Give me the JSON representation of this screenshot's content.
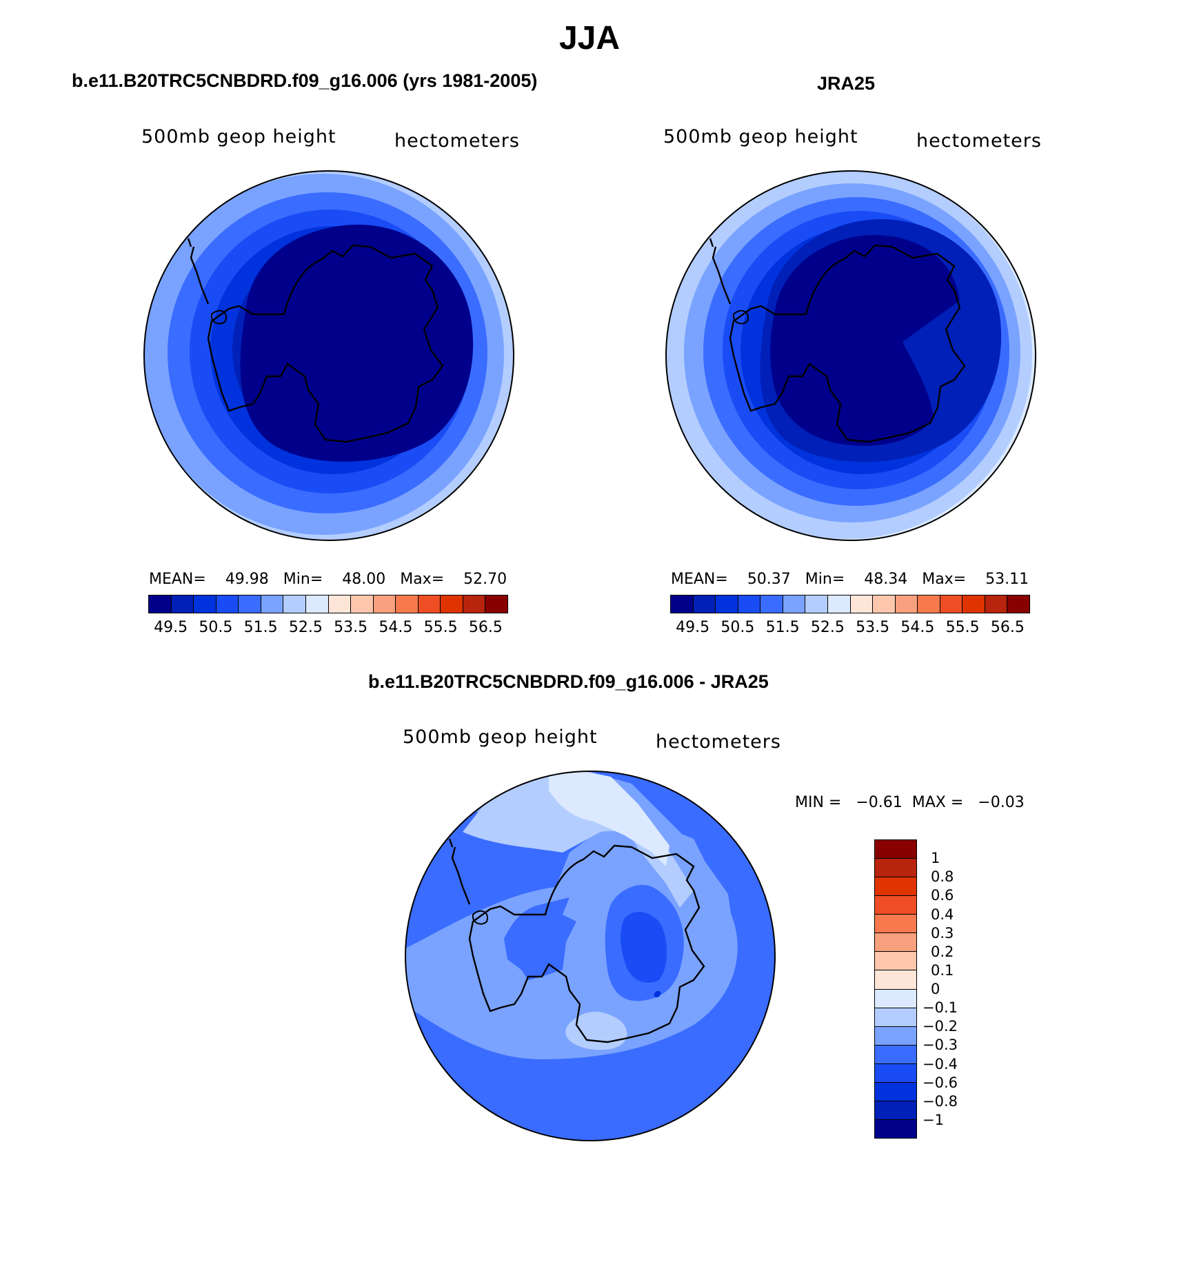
{
  "figure": {
    "title": "JJA"
  },
  "panels": {
    "model": {
      "title": "b.e11.B20TRC5CNBDRD.f09_g16.006 (yrs 1981-2005)",
      "variable": "500mb geop height",
      "units": "hectometers",
      "stats": {
        "mean_label": "MEAN=",
        "mean": "49.98",
        "min_label": "Min=",
        "min": "48.00",
        "max_label": "Max=",
        "max": "52.70"
      }
    },
    "obs": {
      "title": "JRA25",
      "variable": "500mb geop height",
      "units": "hectometers",
      "stats": {
        "mean_label": "MEAN=",
        "mean": "50.37",
        "min_label": "Min=",
        "min": "48.34",
        "max_label": "Max=",
        "max": "53.11"
      }
    },
    "diff": {
      "title": "b.e11.B20TRC5CNBDRD.f09_g16.006 - JRA25",
      "variable": "500mb geop height",
      "units": "hectometers",
      "stats": {
        "min_label": "MIN =",
        "min": "−0.61",
        "max_label": "MAX =",
        "max": "−0.03"
      }
    }
  },
  "colorbars": {
    "abs": {
      "colors": [
        "#00008b",
        "#0020b8",
        "#0033dd",
        "#1a4cf5",
        "#3a6cff",
        "#7aa3ff",
        "#b3cdff",
        "#dce9ff",
        "#fde6d8",
        "#fdc7ad",
        "#f9a07e",
        "#f67a4e",
        "#ef4e24",
        "#df3300",
        "#b8240d",
        "#880000"
      ],
      "ticks": [
        "49.5",
        "50.5",
        "51.5",
        "52.5",
        "53.5",
        "54.5",
        "55.5",
        "56.5"
      ]
    },
    "diff": {
      "colors_top_to_bottom": [
        "#880000",
        "#b8240d",
        "#df3300",
        "#ef4e24",
        "#f67a4e",
        "#f9a07e",
        "#fdc7ad",
        "#fde6d8",
        "#dce9ff",
        "#b3cdff",
        "#7aa3ff",
        "#3a6cff",
        "#1a4cf5",
        "#0033dd",
        "#0020b8",
        "#00008b"
      ],
      "ticks_top_to_bottom": [
        "1",
        "0.8",
        "0.6",
        "0.4",
        "0.3",
        "0.2",
        "0.1",
        "0",
        "−0.1",
        "−0.2",
        "−0.3",
        "−0.4",
        "−0.6",
        "−0.8",
        "−1"
      ]
    }
  },
  "map_colors": {
    "abs_rings_outer_to_inner_model": [
      "#b3cdff",
      "#7aa3ff",
      "#3a6cff",
      "#1a4cf5",
      "#0033dd",
      "#0020b8",
      "#00008b"
    ],
    "abs_rings_outer_to_inner_obs": [
      "#dce9ff",
      "#b3cdff",
      "#7aa3ff",
      "#3a6cff",
      "#1a4cf5",
      "#0033dd",
      "#0020b8",
      "#00008b"
    ],
    "diff_background": "#3a6cff"
  }
}
